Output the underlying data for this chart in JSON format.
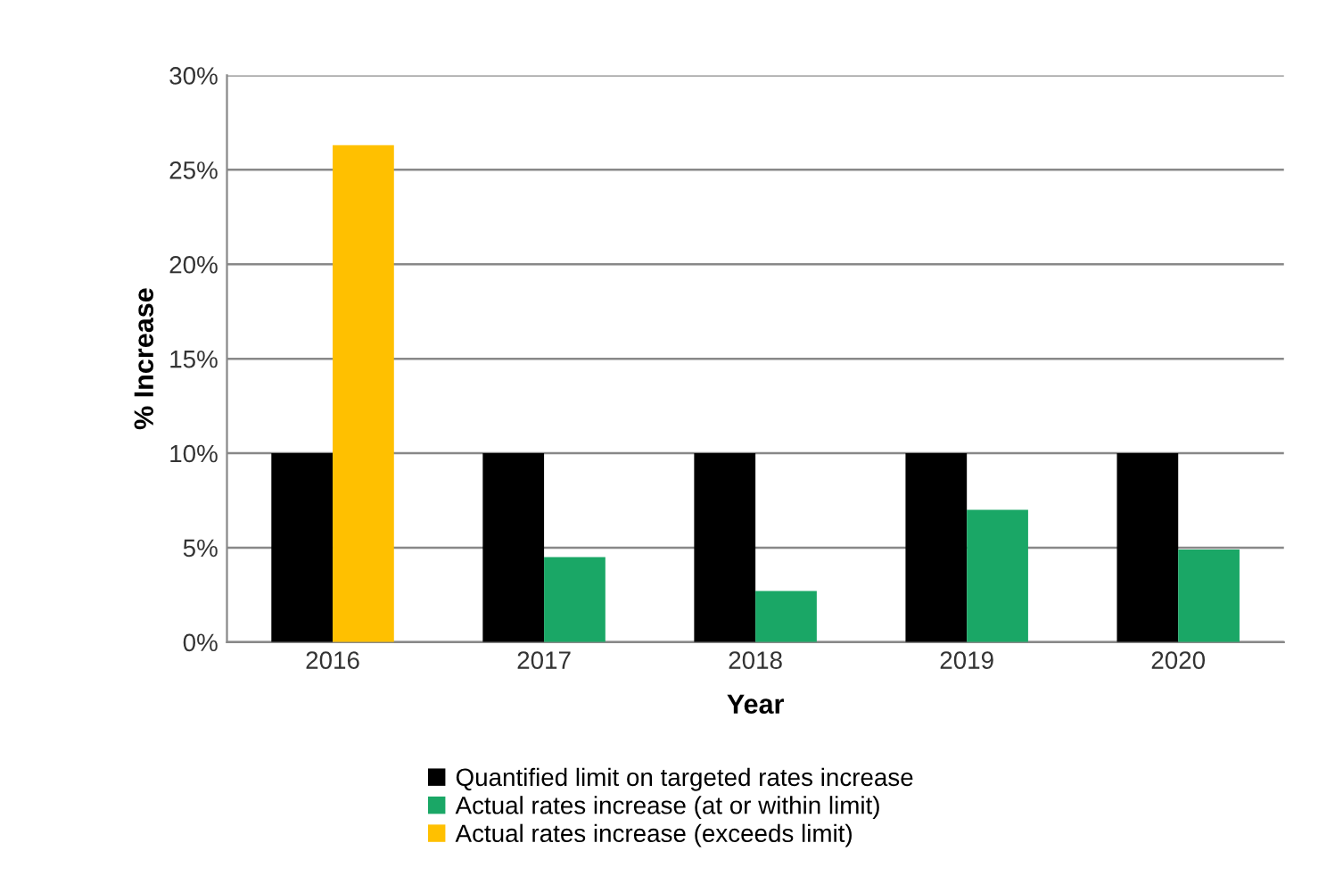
{
  "chart_data": {
    "type": "bar",
    "xlabel": "Year",
    "ylabel": "% Increase",
    "categories": [
      "2016",
      "2017",
      "2018",
      "2019",
      "2020"
    ],
    "series": [
      {
        "name": "Quantified limit on targeted rates increase",
        "color": "#000000",
        "values": [
          10,
          10,
          10,
          10,
          10
        ]
      },
      {
        "name": "Actual rates increase (at or within limit)",
        "color": "#1aa766",
        "values": [
          null,
          4.5,
          2.7,
          7.0,
          4.9
        ]
      },
      {
        "name": "Actual rates increase (exceeds limit)",
        "color": "#ffc000",
        "values": [
          26.3,
          null,
          null,
          null,
          null
        ]
      }
    ],
    "ylim": [
      0,
      30
    ],
    "yticks": [
      {
        "value": 0,
        "label": "0%"
      },
      {
        "value": 5,
        "label": "5%"
      },
      {
        "value": 10,
        "label": "10%"
      },
      {
        "value": 15,
        "label": "15%"
      },
      {
        "value": 20,
        "label": "20%"
      },
      {
        "value": 25,
        "label": "25%"
      },
      {
        "value": 30,
        "label": "30%"
      }
    ],
    "grid": "y",
    "legend": "bottom"
  }
}
